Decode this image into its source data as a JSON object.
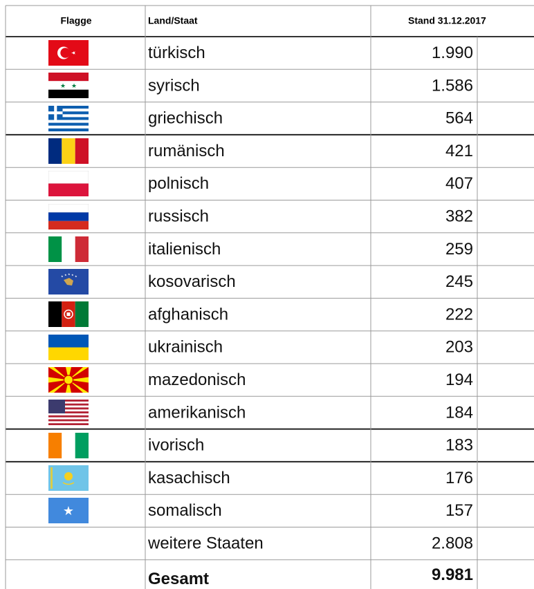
{
  "header": [
    "Flagge",
    "Land/Staat",
    "Stand 31.12.2017"
  ],
  "rows": [
    {
      "name": "türkisch",
      "value": "1.990"
    },
    {
      "name": "syrisch",
      "value": "1.586"
    },
    {
      "name": "griechisch",
      "value": "564"
    },
    {
      "name": "rumänisch",
      "value": "421"
    },
    {
      "name": "polnisch",
      "value": "407"
    },
    {
      "name": "russisch",
      "value": "382"
    },
    {
      "name": "italienisch",
      "value": "259"
    },
    {
      "name": "kosovarisch",
      "value": "245"
    },
    {
      "name": "afghanisch",
      "value": "222"
    },
    {
      "name": "ukrainisch",
      "value": "203"
    },
    {
      "name": "mazedonisch",
      "value": "194"
    },
    {
      "name": "amerikanisch",
      "value": "184"
    },
    {
      "name": "ivorisch",
      "value": "183"
    },
    {
      "name": "kasachisch",
      "value": "176"
    },
    {
      "name": "somalisch",
      "value": "157"
    },
    {
      "name": "weitere Staaten",
      "value": "2.808"
    },
    {
      "name": "Gesamt",
      "value": "9.981"
    }
  ]
}
